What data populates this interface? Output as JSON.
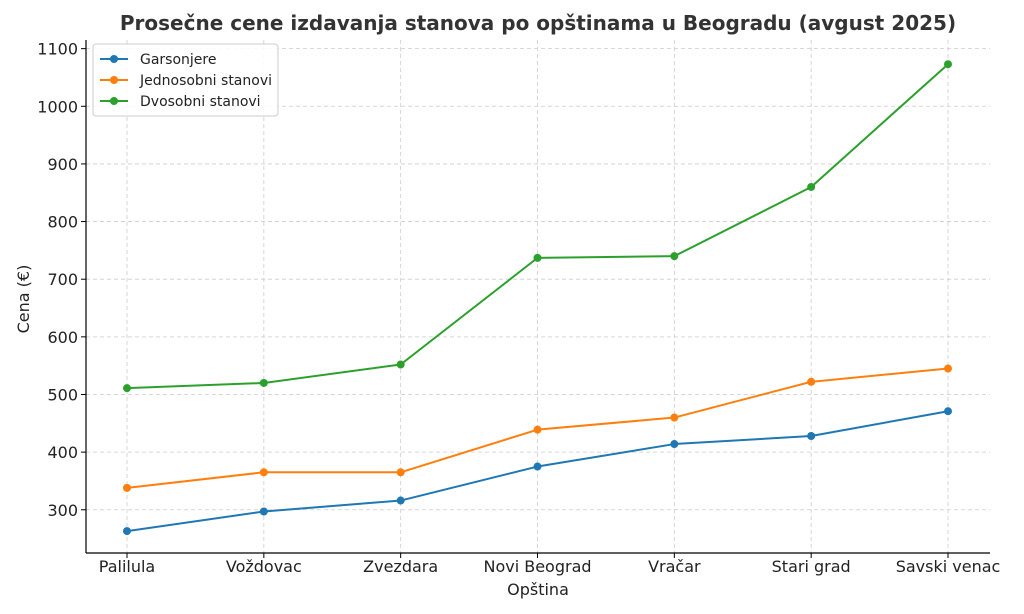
{
  "chart_data": {
    "type": "line",
    "title": "Prosečne cene izdavanja stanova po opštinama u Beogradu (avgust 2025)",
    "xlabel": "Opština",
    "ylabel": "Cena (€)",
    "categories": [
      "Palilula",
      "Voždovac",
      "Zvezdara",
      "Novi Beograd",
      "Vračar",
      "Stari grad",
      "Savski venac"
    ],
    "ylim": [
      225,
      1115
    ],
    "yticks": [
      300,
      400,
      500,
      600,
      700,
      800,
      900,
      1000,
      1100
    ],
    "grid": true,
    "legend_position": "top-left",
    "series": [
      {
        "name": "Garsonjere",
        "color": "#1f77b4",
        "values": [
          263,
          297,
          316,
          375,
          414,
          428,
          471
        ]
      },
      {
        "name": "Jednosobni stanovi",
        "color": "#ff7f0e",
        "values": [
          338,
          365,
          365,
          439,
          460,
          522,
          545
        ]
      },
      {
        "name": "Dvosobni stanovi",
        "color": "#2ca02c",
        "values": [
          511,
          520,
          552,
          737,
          740,
          860,
          1073
        ]
      }
    ]
  }
}
